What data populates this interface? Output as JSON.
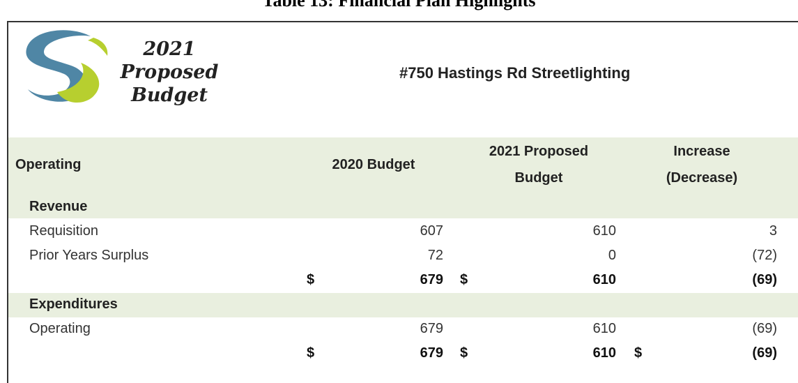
{
  "title": "Table 13: Financial Plan Highlights",
  "logo": {
    "lines": [
      "2021",
      "Proposed",
      "Budget"
    ]
  },
  "heading": "#750 Hastings Rd Streetlighting",
  "table": {
    "columns": [
      "Operating",
      "2020 Budget",
      "2021 Proposed Budget",
      "Increase (Decrease)"
    ],
    "sections": [
      {
        "name": "Revenue",
        "rows": [
          {
            "label": "Requisition",
            "values": [
              "607",
              "610",
              "3"
            ]
          },
          {
            "label": "Prior Years Surplus",
            "values": [
              "72",
              "0",
              "(72)"
            ]
          }
        ],
        "total": [
          {
            "currency": "$",
            "value": "679"
          },
          {
            "currency": "$",
            "value": "610"
          },
          {
            "value": "(69)"
          }
        ]
      },
      {
        "name": "Expenditures",
        "rows": [
          {
            "label": "Operating",
            "values": [
              "679",
              "610",
              "(69)"
            ]
          }
        ],
        "total": [
          {
            "currency": "$",
            "value": "679"
          },
          {
            "currency": "$",
            "value": "610"
          },
          {
            "currency": "$",
            "value": "(69)"
          }
        ]
      }
    ]
  }
}
